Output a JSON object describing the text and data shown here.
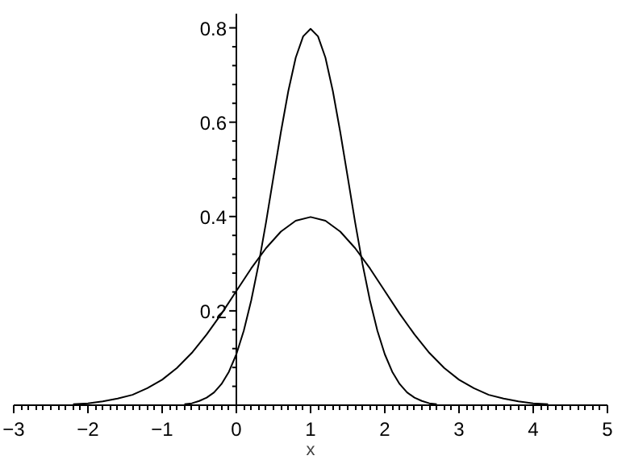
{
  "chart_data": {
    "type": "line",
    "xlabel": "x",
    "series": [
      {
        "color": "#000000",
        "x": [
          -2.2,
          -2.0,
          -1.8,
          -1.6,
          -1.4,
          -1.2,
          -1.0,
          -0.8,
          -0.6,
          -0.4,
          -0.2,
          0.0,
          0.2,
          0.4,
          0.6,
          0.8,
          1.0,
          1.2,
          1.4,
          1.6,
          1.8,
          2.0,
          2.2,
          2.4,
          2.6,
          2.8,
          3.0,
          3.2,
          3.4,
          3.6,
          3.8,
          4.0,
          4.2
        ],
        "values": [
          0.002,
          0.004,
          0.008,
          0.014,
          0.022,
          0.036,
          0.054,
          0.079,
          0.111,
          0.15,
          0.194,
          0.242,
          0.29,
          0.333,
          0.368,
          0.391,
          0.399,
          0.391,
          0.368,
          0.333,
          0.29,
          0.242,
          0.194,
          0.15,
          0.111,
          0.079,
          0.054,
          0.036,
          0.022,
          0.014,
          0.008,
          0.004,
          0.002
        ]
      },
      {
        "color": "#000000",
        "x": [
          -0.7,
          -0.6,
          -0.5,
          -0.4,
          -0.3,
          -0.2,
          -0.1,
          0.0,
          0.1,
          0.2,
          0.3,
          0.4,
          0.5,
          0.6,
          0.7,
          0.8,
          0.9,
          1.0,
          1.1,
          1.2,
          1.3,
          1.4,
          1.5,
          1.6,
          1.7,
          1.8,
          1.9,
          2.0,
          2.1,
          2.2,
          2.3,
          2.4,
          2.5,
          2.6,
          2.7
        ],
        "values": [
          0.002,
          0.004,
          0.009,
          0.016,
          0.027,
          0.045,
          0.071,
          0.108,
          0.158,
          0.222,
          0.299,
          0.388,
          0.484,
          0.579,
          0.666,
          0.737,
          0.782,
          0.798,
          0.782,
          0.737,
          0.666,
          0.579,
          0.484,
          0.388,
          0.299,
          0.222,
          0.158,
          0.108,
          0.071,
          0.045,
          0.027,
          0.016,
          0.009,
          0.004,
          0.002
        ]
      }
    ],
    "xlim": [
      -3,
      5
    ],
    "ylim": [
      0,
      0.83
    ],
    "xticks": [
      -3,
      -2,
      -1,
      0,
      1,
      2,
      3,
      4,
      5
    ],
    "yticks": [
      0.2,
      0.4,
      0.6,
      0.8
    ],
    "grid": false,
    "marker": "none",
    "line_style": "solid"
  }
}
